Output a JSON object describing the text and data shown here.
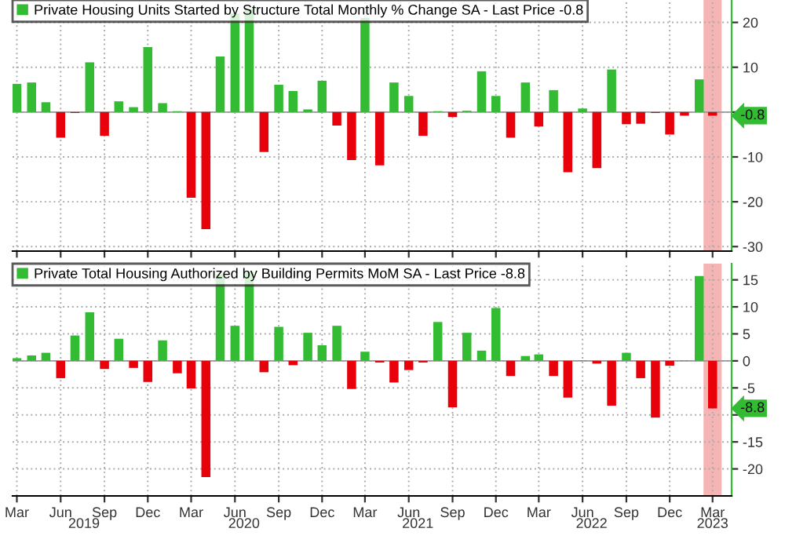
{
  "chart_data": [
    {
      "type": "bar",
      "xlim": [
        "2019-02-20",
        "2023-04-10"
      ],
      "ylim": [
        -31,
        25
      ],
      "yticks": [
        20,
        10,
        {
          "value": 0,
          "label": null
        },
        -10,
        -20,
        -30
      ],
      "tick_labels": "y",
      "grid": true,
      "legend": "top left",
      "xticks": [
        {
          "value": "2019-03",
          "label": null
        },
        {
          "value": "2019-06",
          "label": null
        },
        {
          "value": "2019-09",
          "label": null
        },
        {
          "value": "2019-12",
          "label": null
        },
        {
          "value": "2020-03",
          "label": null
        },
        {
          "value": "2020-06",
          "label": null
        },
        {
          "value": "2020-09",
          "label": null
        },
        {
          "value": "2020-12",
          "label": null
        },
        {
          "value": "2021-03",
          "label": null
        },
        {
          "value": "2021-06",
          "label": null
        },
        {
          "value": "2021-09",
          "label": null
        },
        {
          "value": "2021-12",
          "label": null
        },
        {
          "value": "2022-03",
          "label": null
        },
        {
          "value": "2022-06",
          "label": null
        },
        {
          "value": "2022-09",
          "label": null
        },
        {
          "value": "2022-12",
          "label": null
        },
        {
          "value": "2023-03",
          "label": null
        }
      ],
      "x": [
        "2019-03",
        "2019-04",
        "2019-05",
        "2019-06",
        "2019-07",
        "2019-08",
        "2019-09",
        "2019-10",
        "2019-11",
        "2019-12",
        "2020-01",
        "2020-02",
        "2020-03",
        "2020-04",
        "2020-05",
        "2020-06",
        "2020-07",
        "2020-08",
        "2020-09",
        "2020-10",
        "2020-11",
        "2020-12",
        "2021-01",
        "2021-02",
        "2021-03",
        "2021-04",
        "2021-05",
        "2021-06",
        "2021-07",
        "2021-08",
        "2021-09",
        "2021-10",
        "2021-11",
        "2021-12",
        "2022-01",
        "2022-02",
        "2022-03",
        "2022-04",
        "2022-05",
        "2022-06",
        "2022-07",
        "2022-08",
        "2022-09",
        "2022-10",
        "2022-11",
        "2022-12",
        "2023-01",
        "2023-02",
        "2023-03"
      ],
      "series": [
        {
          "name": "Private Housing Units Started by Structure Total Monthly % Change SA - Last Price -0.8",
          "color": "#33bb33",
          "values": [
            6.3,
            6.6,
            2.2,
            -5.7,
            -0.2,
            11.1,
            -5.3,
            2.4,
            1.1,
            14.5,
            2.0,
            0.2,
            -19.1,
            -26.1,
            12.4,
            22,
            23,
            -8.9,
            6.1,
            4.7,
            0.6,
            7.0,
            -3.0,
            -10.7,
            21,
            -11.9,
            6.6,
            3.6,
            -5.3,
            0.2,
            -1.1,
            0.3,
            9.1,
            3.6,
            -5.7,
            6.6,
            -3.2,
            4.9,
            -13.4,
            0.8,
            -12.5,
            9.5,
            -2.7,
            -2.6,
            -0.2,
            -5.0,
            -0.8,
            7.3,
            -0.8
          ],
          "colors": [
            "#33bb33",
            "#33bb33",
            "#33bb33",
            "#e8000b",
            "#e8000b",
            "#33bb33",
            "#e8000b",
            "#33bb33",
            "#33bb33",
            "#33bb33",
            "#33bb33",
            "#33bb33",
            "#e8000b",
            "#e8000b",
            "#33bb33",
            "#33bb33",
            "#33bb33",
            "#e8000b",
            "#33bb33",
            "#33bb33",
            "#33bb33",
            "#33bb33",
            "#e8000b",
            "#e8000b",
            "#33bb33",
            "#e8000b",
            "#33bb33",
            "#33bb33",
            "#e8000b",
            "#33bb33",
            "#e8000b",
            "#33bb33",
            "#33bb33",
            "#33bb33",
            "#e8000b",
            "#33bb33",
            "#e8000b",
            "#33bb33",
            "#e8000b",
            "#33bb33",
            "#e8000b",
            "#33bb33",
            "#e8000b",
            "#e8000b",
            "#e8000b",
            "#e8000b",
            "#e8000b",
            "#33bb33",
            "#e8000b"
          ]
        }
      ],
      "bands": [
        {
          "axis": "x",
          "from": "2023-02-10",
          "to": "2023-03-20",
          "color": "#f4a3a3"
        }
      ],
      "annotations": [
        "-0.8"
      ]
    },
    {
      "type": "bar",
      "xlim": [
        "2019-02-20",
        "2023-04-10"
      ],
      "ylim": [
        -25,
        18
      ],
      "yticks": [
        15,
        10,
        5,
        0,
        -5,
        {
          "value": -10,
          "label": null
        },
        -15,
        -20
      ],
      "grid": true,
      "legend": "top left",
      "xticks": [
        {
          "value": "2019-03",
          "label": "Mar"
        },
        {
          "value": "2019-06",
          "label": "Jun"
        },
        {
          "value": "2019-09",
          "label": "Sep"
        },
        {
          "value": "2019-12",
          "label": "Dec"
        },
        {
          "value": "2020-03",
          "label": "Mar"
        },
        {
          "value": "2020-06",
          "label": "Jun"
        },
        {
          "value": "2020-09",
          "label": "Sep"
        },
        {
          "value": "2020-12",
          "label": "Dec"
        },
        {
          "value": "2021-03",
          "label": "Mar"
        },
        {
          "value": "2021-06",
          "label": "Jun"
        },
        {
          "value": "2021-09",
          "label": "Sep"
        },
        {
          "value": "2021-12",
          "label": "Dec"
        },
        {
          "value": "2022-03",
          "label": "Mar"
        },
        {
          "value": "2022-06",
          "label": "Jun"
        },
        {
          "value": "2022-09",
          "label": "Sep"
        },
        {
          "value": "2022-12",
          "label": "Dec"
        },
        {
          "value": "2023-03",
          "label": "Mar"
        }
      ],
      "x2lim": [
        "2019-02-20",
        "2023-04-10"
      ],
      "x2ticks": [
        {
          "value": "2019-07-20",
          "label": "2019"
        },
        {
          "value": "2020-06-20",
          "label": "2020"
        },
        {
          "value": "2021-06-20",
          "label": "2021"
        },
        {
          "value": "2022-06-20",
          "label": "2022"
        },
        {
          "value": "2023-03-01",
          "label": "2023"
        }
      ],
      "x": [
        "2019-03",
        "2019-04",
        "2019-05",
        "2019-06",
        "2019-07",
        "2019-08",
        "2019-09",
        "2019-10",
        "2019-11",
        "2019-12",
        "2020-01",
        "2020-02",
        "2020-03",
        "2020-04",
        "2020-05",
        "2020-06",
        "2020-07",
        "2020-08",
        "2020-09",
        "2020-10",
        "2020-11",
        "2020-12",
        "2021-01",
        "2021-02",
        "2021-03",
        "2021-04",
        "2021-05",
        "2021-06",
        "2021-07",
        "2021-08",
        "2021-09",
        "2021-10",
        "2021-11",
        "2021-12",
        "2022-01",
        "2022-02",
        "2022-03",
        "2022-04",
        "2022-05",
        "2022-06",
        "2022-07",
        "2022-08",
        "2022-09",
        "2022-10",
        "2022-11",
        "2022-12",
        "2023-01",
        "2023-02",
        "2023-03"
      ],
      "series": [
        {
          "name": "Private Total Housing Authorized by Building Permits MoM SA - Last Price -8.8",
          "color": "#33bb33",
          "values": [
            0.5,
            1.0,
            1.5,
            -3.2,
            4.7,
            9.0,
            -1.5,
            4.1,
            -1.3,
            -3.9,
            3.8,
            -2.3,
            -5.1,
            -21.5,
            16,
            6.5,
            16.5,
            -2.1,
            6.3,
            -0.8,
            5.2,
            2.9,
            6.5,
            -5.2,
            1.7,
            -0.3,
            -4.0,
            -1.7,
            -0.3,
            7.2,
            -8.6,
            5.2,
            1.9,
            9.8,
            -2.8,
            0.9,
            1.2,
            -2.8,
            -6.8,
            0.1,
            -0.5,
            -8.3,
            1.5,
            -3.2,
            -10.5,
            -0.9,
            0.1,
            15.7,
            -8.8
          ],
          "colors": [
            "#33bb33",
            "#33bb33",
            "#33bb33",
            "#e8000b",
            "#33bb33",
            "#33bb33",
            "#e8000b",
            "#33bb33",
            "#e8000b",
            "#e8000b",
            "#33bb33",
            "#e8000b",
            "#e8000b",
            "#e8000b",
            "#33bb33",
            "#33bb33",
            "#33bb33",
            "#e8000b",
            "#33bb33",
            "#e8000b",
            "#33bb33",
            "#33bb33",
            "#33bb33",
            "#e8000b",
            "#33bb33",
            "#e8000b",
            "#e8000b",
            "#e8000b",
            "#e8000b",
            "#33bb33",
            "#e8000b",
            "#33bb33",
            "#33bb33",
            "#33bb33",
            "#e8000b",
            "#33bb33",
            "#33bb33",
            "#e8000b",
            "#e8000b",
            "#33bb33",
            "#e8000b",
            "#e8000b",
            "#33bb33",
            "#e8000b",
            "#e8000b",
            "#e8000b",
            "#33bb33",
            "#33bb33",
            "#e8000b"
          ]
        }
      ],
      "bands": [
        {
          "axis": "x",
          "from": "2023-02-10",
          "to": "2023-03-20",
          "color": "#f4a3a3"
        }
      ],
      "annotations": [
        "-8.8"
      ]
    }
  ]
}
